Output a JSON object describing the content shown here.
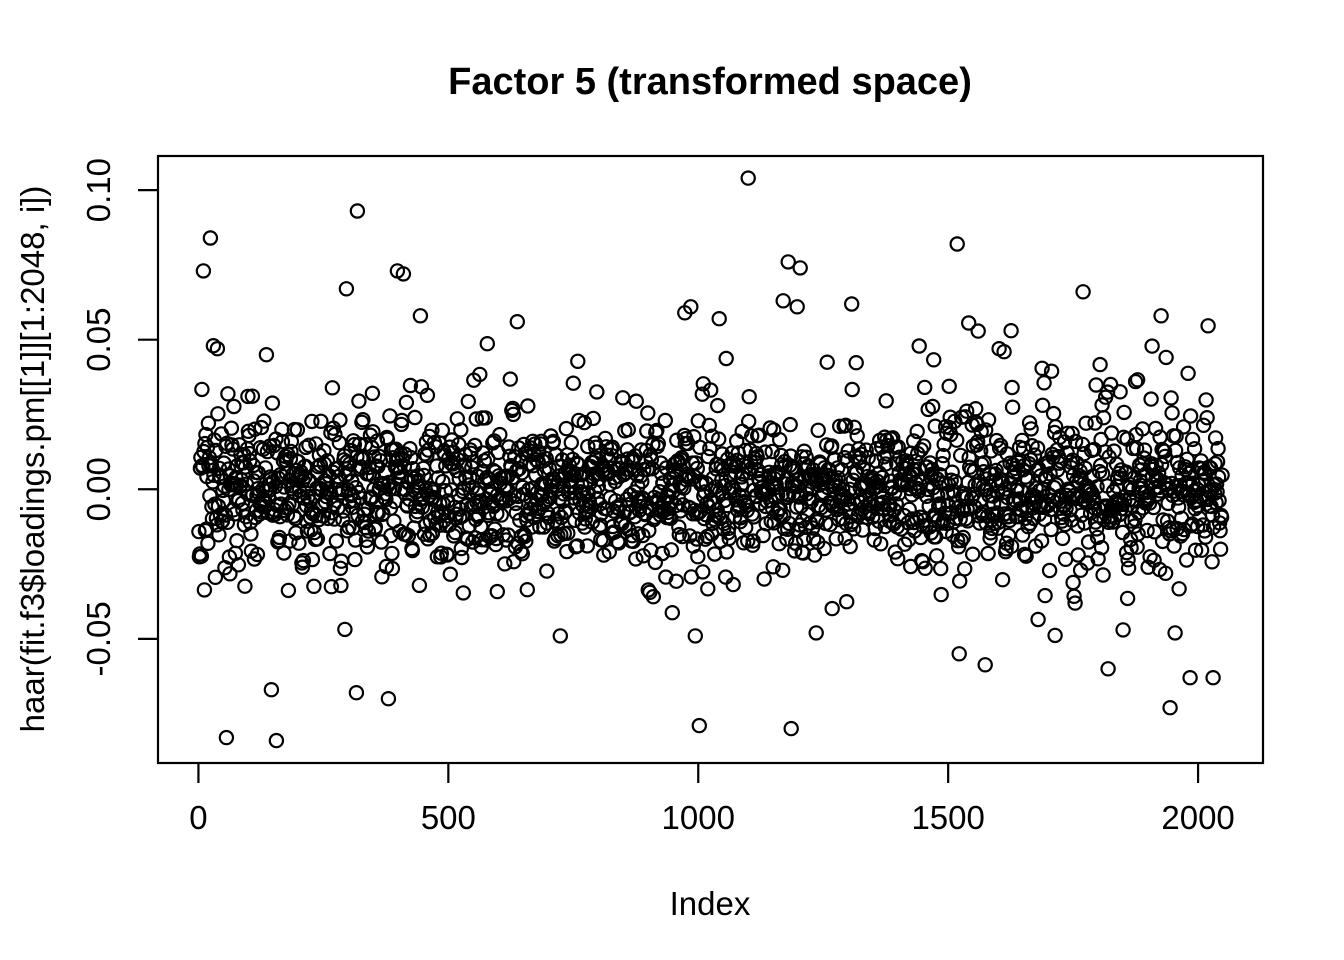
{
  "page": {
    "background_color": "#ffffff",
    "foreground_color": "#000000"
  },
  "chart_data": {
    "type": "scatter",
    "title": "Factor 5 (transformed space)",
    "xlabel": "Index",
    "ylabel": "haar(fit.f3$loadings.pm[[1]][1:2048, i])",
    "grid": false,
    "legend": null,
    "marker": {
      "shape": "open-circle",
      "color": "#000000",
      "radius_px": 6.6,
      "stroke_px": 2.2
    },
    "n_points": 2048,
    "x_series": {
      "min": 1,
      "max": 2048,
      "step": 1
    },
    "xlim": [
      -80.9,
      2129.9
    ],
    "ylim": [
      -0.0915,
      0.1114
    ],
    "x_ticks": {
      "values": [
        0,
        500,
        1000,
        1500,
        2000
      ],
      "labels": [
        "0",
        "500",
        "1000",
        "1500",
        "2000"
      ]
    },
    "y_ticks": {
      "values": [
        -0.05,
        0.0,
        0.05,
        0.1
      ],
      "labels": [
        "-0.05",
        "0.00",
        "0.05",
        "0.10"
      ]
    },
    "y_noise_model": {
      "seed": 20481,
      "mixture": [
        {
          "p": 0.78,
          "sd": 0.011
        },
        {
          "p": 0.16,
          "sd": 0.019
        },
        {
          "p": 0.06,
          "sd": 0.029
        }
      ],
      "amplitude_modulation": [
        {
          "period": 1400,
          "amp": 0.12,
          "phase": 0.5
        },
        {
          "period": 520,
          "amp": 0.1,
          "phase": 2.2
        }
      ],
      "clip_abs": 0.062
    },
    "outliers": [
      [
        10,
        0.073
      ],
      [
        24,
        0.084
      ],
      [
        30,
        0.048
      ],
      [
        38,
        0.047
      ],
      [
        296,
        0.067
      ],
      [
        318,
        0.093
      ],
      [
        398,
        0.073
      ],
      [
        410,
        0.072
      ],
      [
        444,
        0.058
      ],
      [
        638,
        0.056
      ],
      [
        973,
        0.059
      ],
      [
        985,
        0.061
      ],
      [
        1042,
        0.057
      ],
      [
        1100,
        0.104
      ],
      [
        1170,
        0.063
      ],
      [
        1180,
        0.076
      ],
      [
        1198,
        0.061
      ],
      [
        1204,
        0.074
      ],
      [
        1518,
        0.082
      ],
      [
        1602,
        0.047
      ],
      [
        1612,
        0.046
      ],
      [
        1770,
        0.066
      ],
      [
        1926,
        0.058
      ],
      [
        56,
        -0.083
      ],
      [
        146,
        -0.067
      ],
      [
        156,
        -0.084
      ],
      [
        316,
        -0.068
      ],
      [
        380,
        -0.07
      ],
      [
        724,
        -0.049
      ],
      [
        994,
        -0.049
      ],
      [
        1002,
        -0.079
      ],
      [
        1186,
        -0.08
      ],
      [
        1236,
        -0.048
      ],
      [
        1522,
        -0.055
      ],
      [
        1820,
        -0.06
      ],
      [
        1850,
        -0.047
      ],
      [
        1944,
        -0.073
      ],
      [
        1954,
        -0.048
      ],
      [
        1984,
        -0.063
      ],
      [
        2030,
        -0.063
      ]
    ]
  }
}
